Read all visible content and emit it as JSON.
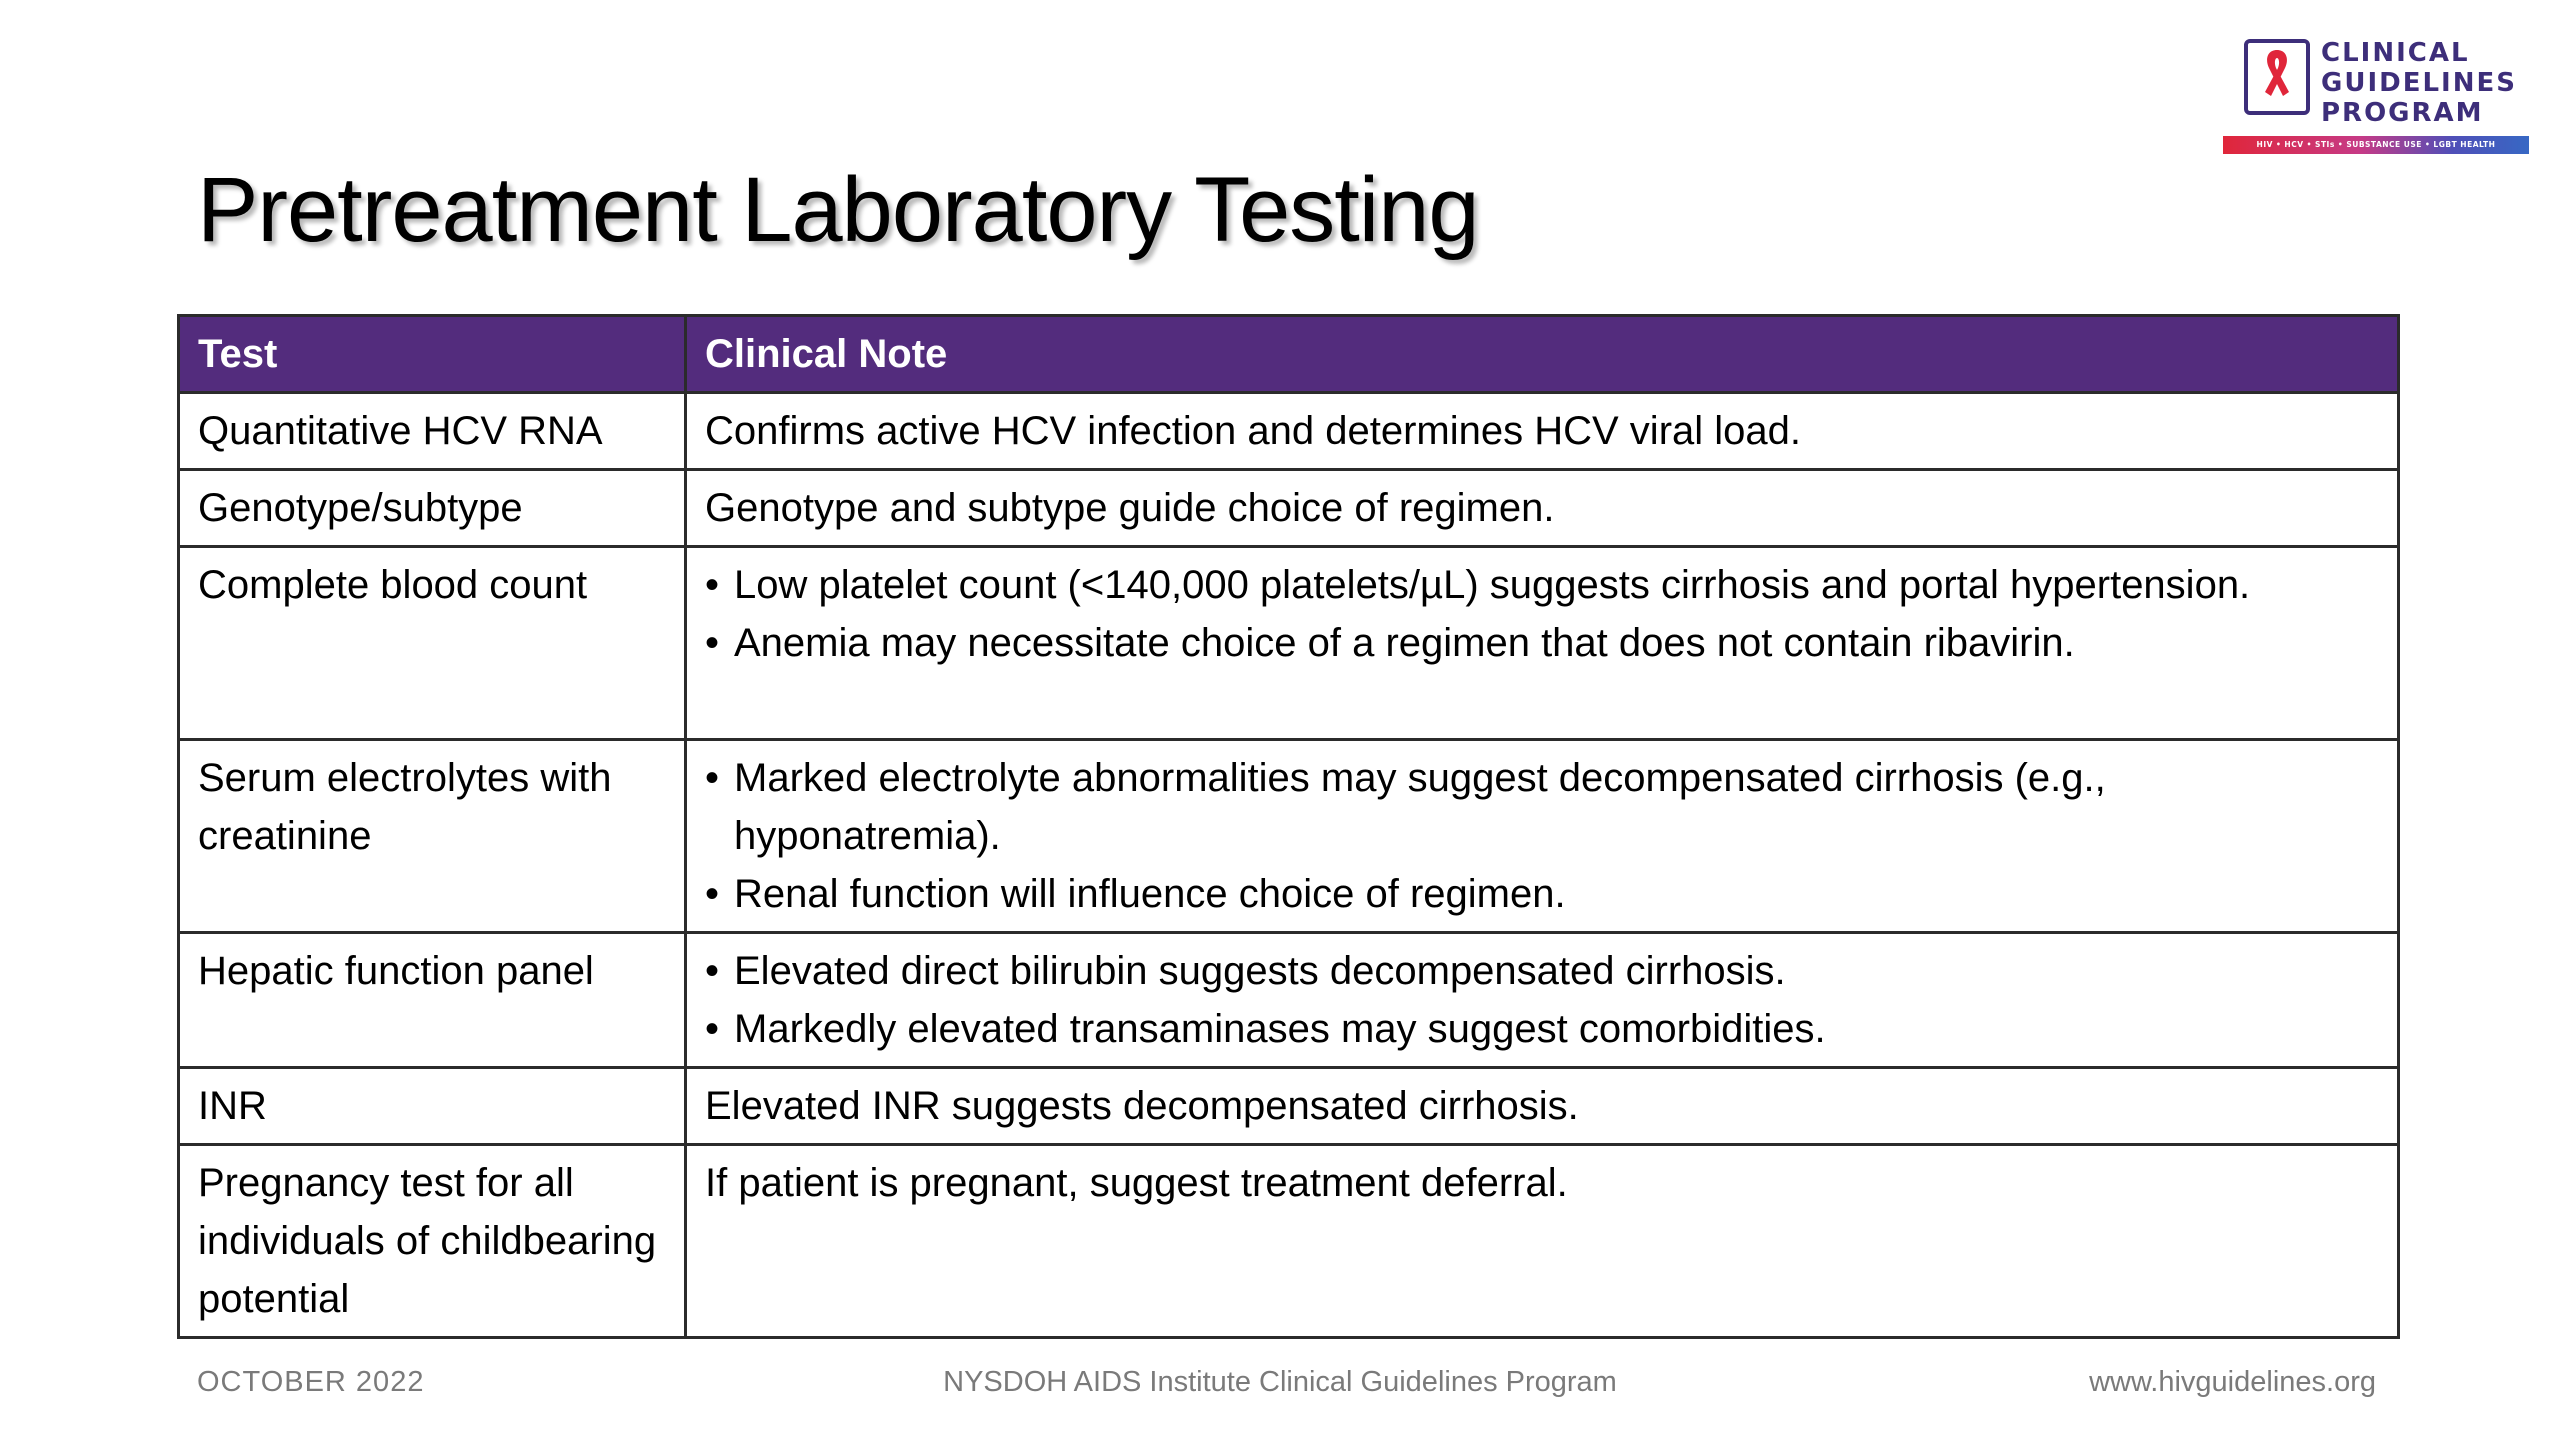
{
  "logo": {
    "lines": [
      "CLINICAL",
      "GUIDELINES",
      "PROGRAM"
    ],
    "tagline": "HIV • HCV • STIs • SUBSTANCE USE • LGBT HEALTH",
    "colors": {
      "text": "#3d2e7a",
      "ribbon": "#e0263a",
      "stripe_start": "#e0263a",
      "stripe_end": "#3768c4"
    }
  },
  "title": "Pretreatment Laboratory Testing",
  "table": {
    "header_color": "#532c7d",
    "headers": [
      "Test",
      "Clinical Note"
    ],
    "rows": [
      {
        "test": "Quantitative HCV RNA",
        "note": "Confirms active HCV infection and determines HCV viral load."
      },
      {
        "test": "Genotype/subtype",
        "note": "Genotype and subtype guide choice of regimen."
      },
      {
        "test": "Complete blood count",
        "bullets": [
          "Low platelet count (<140,000 platelets/µL) suggests cirrhosis and portal hypertension.",
          "Anemia may necessitate choice of a regimen that does not contain ribavirin."
        ]
      },
      {
        "test": "Serum electrolytes with creatinine",
        "bullets": [
          "Marked electrolyte abnormalities may suggest decompensated cirrhosis (e.g., hyponatremia).",
          "Renal function will influence choice of regimen."
        ]
      },
      {
        "test": "Hepatic function panel",
        "bullets": [
          "Elevated direct bilirubin suggests decompensated cirrhosis.",
          "Markedly elevated transaminases may suggest comorbidities."
        ]
      },
      {
        "test": "INR",
        "note": "Elevated INR suggests decompensated cirrhosis."
      },
      {
        "test": "Pregnancy test for all individuals of childbearing potential",
        "note": "If patient is pregnant, suggest treatment deferral."
      }
    ]
  },
  "footer": {
    "date": "OCTOBER 2022",
    "program": "NYSDOH AIDS Institute Clinical Guidelines Program",
    "url": "www.hivguidelines.org"
  }
}
